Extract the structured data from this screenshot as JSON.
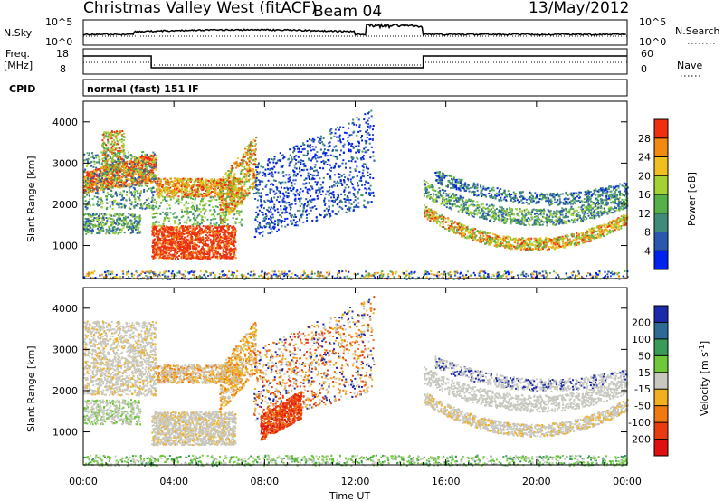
{
  "header": {
    "station": "Christmas Valley West (fitACF)",
    "beam": "Beam 04",
    "date": "13/May/2012"
  },
  "strip": {
    "nsky_label": "N.Sky",
    "nsearch_label": "N.Search",
    "noise_left_ticks": [
      "10^5",
      "10^0"
    ],
    "noise_right_ticks": [
      "10^5",
      "10^0"
    ],
    "freq_label": "Freq.",
    "freq_unit": "[MHz]",
    "freq_ticks": [
      "18",
      "8"
    ],
    "nave_label": "Nave",
    "nave_ticks": [
      "60",
      "0"
    ],
    "cpid_label": "CPID",
    "cpid_value": "normal (fast) 151 IF"
  },
  "chart_data": [
    {
      "type": "heatmap",
      "title": "",
      "ylabel": "Slant Range [km]",
      "xlabel": "",
      "x_ticks": [
        "00:00",
        "04:00",
        "08:00",
        "12:00",
        "16:00",
        "20:00",
        "00:00"
      ],
      "y_ticks": [
        "1000",
        "2000",
        "3000",
        "4000"
      ],
      "ylim": [
        200,
        4500
      ],
      "xlim_hours": [
        0,
        24
      ],
      "colorbar": {
        "label": "Power [dB]",
        "ticks": [
          "4",
          "8",
          "12",
          "16",
          "20",
          "24",
          "28"
        ],
        "colors": [
          "#0022ee",
          "#2a58b0",
          "#3f8a78",
          "#56b04a",
          "#a4d234",
          "#f0c020",
          "#f08a10",
          "#ee3010"
        ]
      }
    },
    {
      "type": "heatmap",
      "title": "",
      "ylabel": "Slant Range [km]",
      "xlabel": "Time UT",
      "x_ticks": [
        "00:00",
        "04:00",
        "08:00",
        "12:00",
        "16:00",
        "20:00",
        "00:00"
      ],
      "y_ticks": [
        "1000",
        "2000",
        "3000",
        "4000"
      ],
      "ylim": [
        200,
        4500
      ],
      "xlim_hours": [
        0,
        24
      ],
      "colorbar": {
        "label": "Velocity [m s",
        "label_sup": "-1",
        "label_close": "]",
        "ticks": [
          "200",
          "100",
          "50",
          "15",
          "-15",
          "-50",
          "-100",
          "-200"
        ],
        "colors": [
          "#1a2aa8",
          "#2e6a96",
          "#3a9a58",
          "#6ec83a",
          "#c8c8c0",
          "#f0b020",
          "#f07a10",
          "#e83c10",
          "#e01010"
        ]
      }
    }
  ]
}
